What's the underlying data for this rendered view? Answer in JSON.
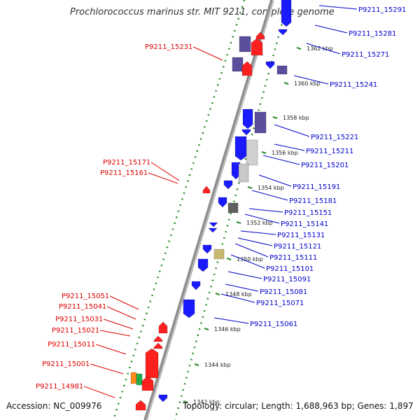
{
  "title": "Prochlorococcus marinus str. MIT 9211, complete genome",
  "footer": {
    "accession": "Accession: NC_009976",
    "topology": "Topology: circular; Length: 1,688,963 bp; Genes: 1,897"
  },
  "colors": {
    "reverse_strand_label": "#dd0000",
    "forward_strand_label": "#0000cc",
    "backbone": "#8c8c8c",
    "ruler_dots": "#2a8a2a",
    "gene_red": "#ff2020",
    "gene_blue": "#1a1aff",
    "gene_purple": "#5a4f9c"
  },
  "kbp_ticks": [
    "1362 kbp",
    "1360 kbp",
    "1358 kbp",
    "1356 kbp",
    "1354 kbp",
    "1352 kbp",
    "1350 kbp",
    "1348 kbp",
    "1346 kbp",
    "1344 kbp",
    "1342 kbp"
  ],
  "forward_labels": [
    "P9211_15291",
    "P9211_15281",
    "P9211_15271",
    "P9211_15241",
    "P9211_15221",
    "P9211_15211",
    "P9211_15201",
    "P9211_15191",
    "P9211_15181",
    "P9211_15151",
    "P9211_15141",
    "P9211_15131",
    "P9211_15121",
    "P9211_15111",
    "P9211_15101",
    "P9211_15091",
    "P9211_15081",
    "P9211_15071",
    "P9211_15061"
  ],
  "reverse_labels": [
    "P9211_15231",
    "P9211_15171",
    "P9211_15161",
    "P9211_15051",
    "P9211_15041",
    "P9211_15031",
    "P9211_15021",
    "P9211_15011",
    "P9211_15001",
    "P9211_14981"
  ]
}
